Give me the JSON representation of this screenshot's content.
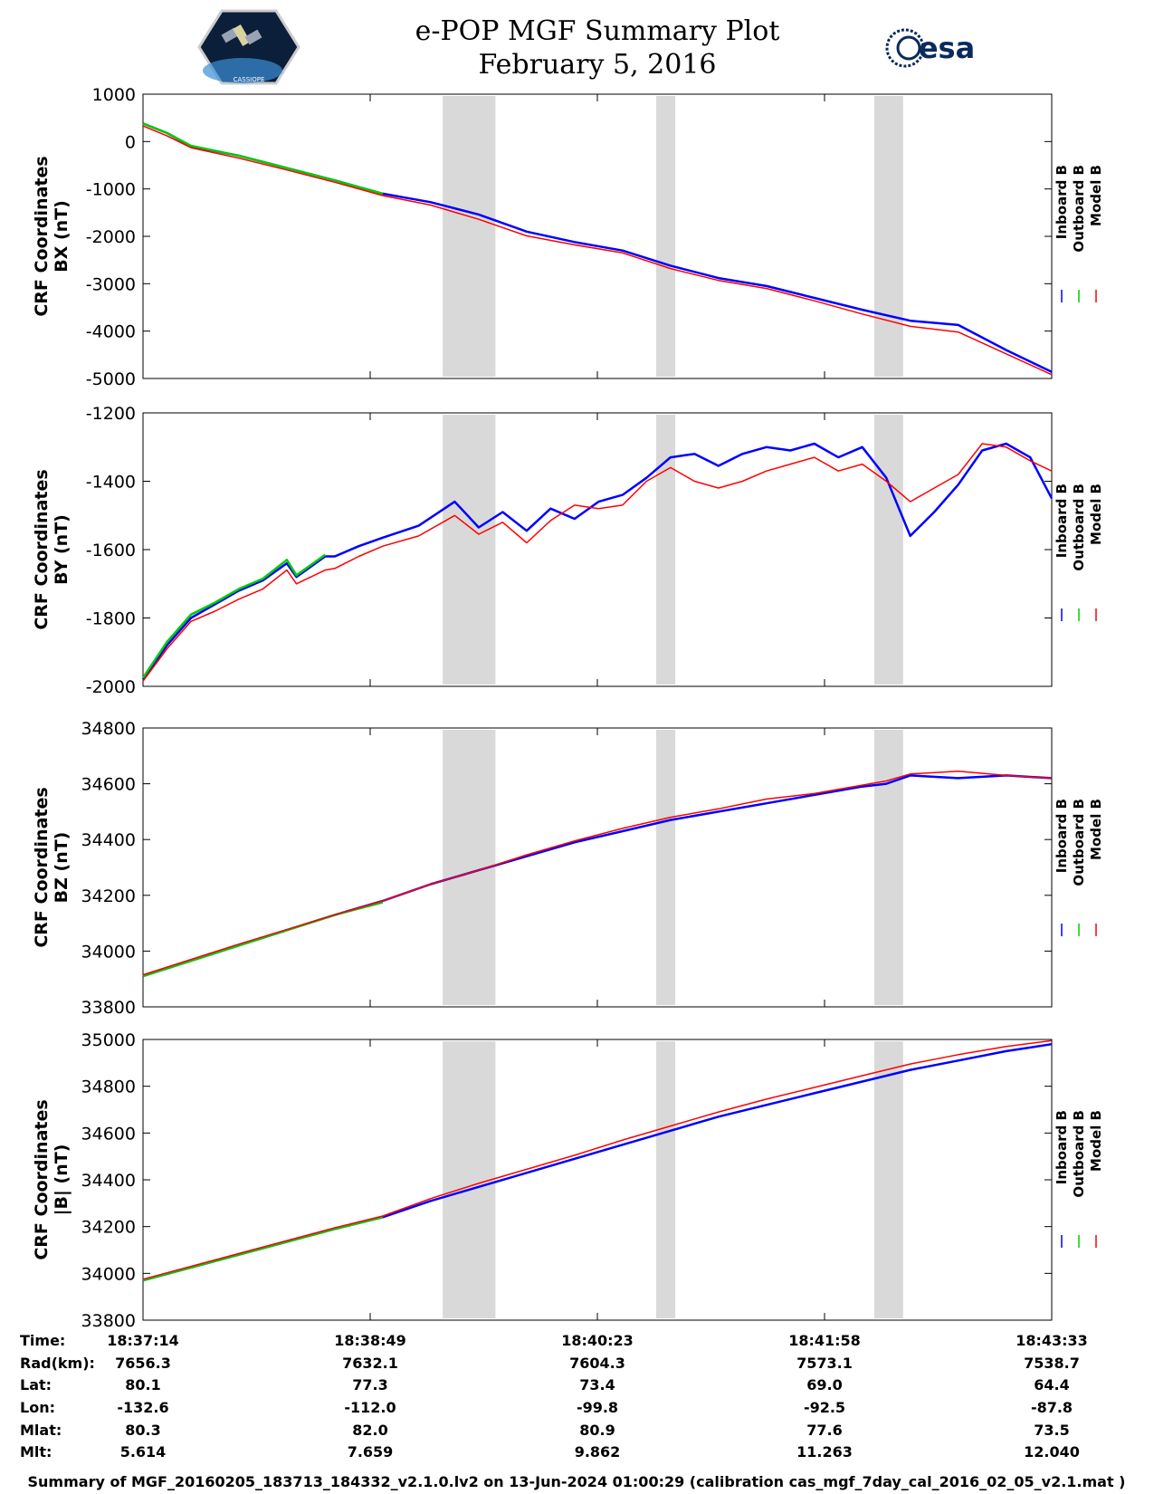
{
  "header": {
    "title_line1": "e-POP MGF Summary Plot",
    "title_line2": "February 5, 2016",
    "left_logo_label": "CASSIOPE",
    "right_logo_label": "esa",
    "left_logo_icon": "cassiope-satellite-logo",
    "right_logo_icon": "esa-logo"
  },
  "legend": {
    "labels": [
      "Inboard B",
      "Outboard B",
      "Model B"
    ],
    "colors": [
      "#0000ff",
      "#00cc00",
      "#ff0000"
    ]
  },
  "chart_data": [
    {
      "type": "line",
      "ylabel_line1": "CRF Coordinates",
      "ylabel_line2": "BX (nT)",
      "ylim": [
        -5000,
        1000
      ],
      "yticks": [
        "1000",
        "0",
        "-1000",
        "-2000",
        "-3000",
        "-4000",
        "-5000"
      ],
      "ytick_values": [
        1000,
        0,
        -1000,
        -2000,
        -3000,
        -4000,
        -5000
      ],
      "x": [
        0,
        10,
        20,
        40,
        60,
        80,
        100,
        120,
        140,
        160,
        180,
        200,
        220,
        240,
        260,
        280,
        300,
        320,
        340,
        360,
        379
      ],
      "series": [
        {
          "name": "Inboard B",
          "color": "#0000ff",
          "values": [
            380,
            180,
            -100,
            -300,
            -560,
            -820,
            -1100,
            -1280,
            -1540,
            -1900,
            -2120,
            -2300,
            -2620,
            -2880,
            -3050,
            -3300,
            -3550,
            -3780,
            -3870,
            -4400,
            -4860
          ]
        },
        {
          "name": "Outboard B",
          "color": "#00cc00",
          "values": [
            380,
            180,
            -90,
            -300,
            -560,
            -820,
            -1100,
            null,
            null,
            null,
            null,
            null,
            null,
            null,
            null,
            null,
            null,
            null,
            null,
            null,
            null
          ]
        },
        {
          "name": "Model B",
          "color": "#ff0000",
          "values": [
            330,
            120,
            -130,
            -350,
            -600,
            -860,
            -1140,
            -1340,
            -1640,
            -1990,
            -2180,
            -2350,
            -2680,
            -2930,
            -3100,
            -3360,
            -3640,
            -3900,
            -4020,
            -4480,
            -4920
          ]
        }
      ],
      "gap_spans": [
        [
          125,
          147
        ],
        [
          214,
          222
        ],
        [
          305,
          317
        ]
      ]
    },
    {
      "type": "line",
      "ylabel_line1": "CRF Coordinates",
      "ylabel_line2": "BY (nT)",
      "ylim": [
        -2000,
        -1200
      ],
      "yticks": [
        "-1200",
        "-1400",
        "-1600",
        "-1800",
        "-2000"
      ],
      "ytick_values": [
        -1200,
        -1400,
        -1600,
        -1800,
        -2000
      ],
      "x": [
        0,
        10,
        20,
        30,
        40,
        50,
        60,
        64,
        70,
        76,
        80,
        90,
        100,
        115,
        130,
        140,
        150,
        160,
        170,
        180,
        190,
        200,
        210,
        220,
        230,
        240,
        250,
        260,
        270,
        280,
        290,
        300,
        310,
        320,
        330,
        340,
        350,
        360,
        370,
        379
      ],
      "series": [
        {
          "name": "Inboard B",
          "color": "#0000ff",
          "values": [
            -1980,
            -1880,
            -1800,
            -1760,
            -1720,
            -1690,
            -1640,
            -1680,
            -1650,
            -1620,
            -1620,
            -1590,
            -1565,
            -1530,
            -1460,
            -1535,
            -1490,
            -1545,
            -1480,
            -1510,
            -1460,
            -1440,
            -1390,
            -1330,
            -1320,
            -1355,
            -1320,
            -1300,
            -1310,
            -1290,
            -1330,
            -1300,
            -1390,
            -1560,
            -1490,
            -1410,
            -1310,
            -1290,
            -1330,
            -1450
          ]
        },
        {
          "name": "Outboard B",
          "color": "#00cc00",
          "values": [
            -1975,
            -1870,
            -1790,
            -1755,
            -1715,
            -1685,
            -1630,
            -1675,
            -1645,
            -1615,
            null,
            null,
            null,
            null,
            null,
            null,
            null,
            null,
            null,
            null,
            null,
            null,
            null,
            null,
            null,
            null,
            null,
            null,
            null,
            null,
            null,
            null,
            null,
            null,
            null,
            null,
            null,
            null,
            null,
            null
          ]
        },
        {
          "name": "Model B",
          "color": "#ff0000",
          "values": [
            -1985,
            -1890,
            -1810,
            -1780,
            -1745,
            -1715,
            -1660,
            -1700,
            -1680,
            -1660,
            -1655,
            -1620,
            -1590,
            -1560,
            -1500,
            -1555,
            -1520,
            -1580,
            -1515,
            -1470,
            -1480,
            -1470,
            -1400,
            -1360,
            -1400,
            -1420,
            -1400,
            -1370,
            -1350,
            -1330,
            -1370,
            -1350,
            -1400,
            -1460,
            -1420,
            -1380,
            -1290,
            -1300,
            -1340,
            -1370
          ]
        }
      ],
      "gap_spans": [
        [
          125,
          147
        ],
        [
          214,
          222
        ],
        [
          305,
          317
        ]
      ]
    },
    {
      "type": "line",
      "ylabel_line1": "CRF Coordinates",
      "ylabel_line2": "BZ (nT)",
      "ylim": [
        33800,
        34800
      ],
      "yticks": [
        "34800",
        "34600",
        "34400",
        "34200",
        "34000",
        "33800"
      ],
      "ytick_values": [
        34800,
        34600,
        34400,
        34200,
        34000,
        33800
      ],
      "x": [
        0,
        40,
        80,
        100,
        120,
        140,
        160,
        180,
        200,
        220,
        240,
        260,
        280,
        300,
        310,
        320,
        340,
        360,
        379
      ],
      "series": [
        {
          "name": "Inboard B",
          "color": "#0000ff",
          "values": [
            33910,
            34020,
            34130,
            34180,
            34240,
            34290,
            34340,
            34390,
            34430,
            34470,
            34500,
            34530,
            34560,
            34590,
            34600,
            34630,
            34620,
            34630,
            34620
          ]
        },
        {
          "name": "Outboard B",
          "color": "#00cc00",
          "values": [
            33910,
            34020,
            34130,
            34175,
            null,
            null,
            null,
            null,
            null,
            null,
            null,
            null,
            null,
            null,
            null,
            null,
            null,
            null,
            null
          ]
        },
        {
          "name": "Model B",
          "color": "#ff0000",
          "values": [
            33915,
            34025,
            34130,
            34180,
            34240,
            34290,
            34345,
            34395,
            34440,
            34480,
            34510,
            34545,
            34565,
            34595,
            34610,
            34635,
            34645,
            34630,
            34620
          ]
        }
      ],
      "gap_spans": [
        [
          125,
          147
        ],
        [
          214,
          222
        ],
        [
          305,
          317
        ]
      ]
    },
    {
      "type": "line",
      "ylabel_line1": "CRF Coordinates",
      "ylabel_line2": "|B| (nT)",
      "ylim": [
        33800,
        35000
      ],
      "yticks": [
        "35000",
        "34800",
        "34600",
        "34400",
        "34200",
        "34000",
        "33800"
      ],
      "ytick_values": [
        35000,
        34800,
        34600,
        34400,
        34200,
        34000,
        33800
      ],
      "x": [
        0,
        40,
        80,
        100,
        120,
        140,
        160,
        180,
        200,
        220,
        240,
        260,
        280,
        300,
        320,
        340,
        360,
        379
      ],
      "series": [
        {
          "name": "Inboard B",
          "color": "#0000ff",
          "values": [
            33970,
            34080,
            34190,
            34240,
            34310,
            34370,
            34430,
            34490,
            34550,
            34610,
            34670,
            34720,
            34770,
            34820,
            34870,
            34910,
            34950,
            34980
          ]
        },
        {
          "name": "Outboard B",
          "color": "#00cc00",
          "values": [
            33970,
            34080,
            34190,
            34240,
            null,
            null,
            null,
            null,
            null,
            null,
            null,
            null,
            null,
            null,
            null,
            null,
            null,
            null
          ]
        },
        {
          "name": "Model B",
          "color": "#ff0000",
          "values": [
            33975,
            34085,
            34195,
            34245,
            34320,
            34385,
            34445,
            34505,
            34570,
            34630,
            34690,
            34745,
            34795,
            34845,
            34895,
            34935,
            34970,
            34995
          ]
        }
      ],
      "gap_spans": [
        [
          125,
          147
        ],
        [
          214,
          222
        ],
        [
          305,
          317
        ]
      ]
    }
  ],
  "ephemeris": {
    "row_labels": [
      "Time:",
      "Rad(km):",
      "Lat:",
      "Lon:",
      "Mlat:",
      "Mlt:"
    ],
    "columns": [
      [
        "18:37:14",
        "7656.3",
        "80.1",
        "-132.6",
        "80.3",
        "5.614"
      ],
      [
        "18:38:49",
        "7632.1",
        "77.3",
        "-112.0",
        "82.0",
        "7.659"
      ],
      [
        "18:40:23",
        "7604.3",
        "73.4",
        "-99.8",
        "80.9",
        "9.862"
      ],
      [
        "18:41:58",
        "7573.1",
        "69.0",
        "-92.5",
        "77.6",
        "11.263"
      ],
      [
        "18:43:33",
        "7538.7",
        "64.4",
        "-87.8",
        "73.5",
        "12.040"
      ]
    ]
  },
  "footer": {
    "text": "Summary of MGF_20160205_183713_184332_v2.1.0.lv2 on 13-Jun-2024 01:00:29 (calibration cas_mgf_7day_cal_2016_02_05_v2.1.mat )"
  }
}
